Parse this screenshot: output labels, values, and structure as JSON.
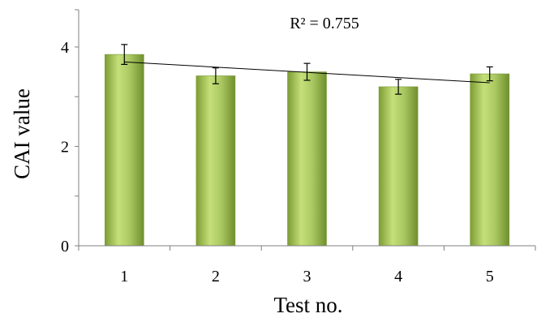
{
  "chart_data": {
    "type": "bar",
    "categories": [
      "1",
      "2",
      "3",
      "4",
      "5"
    ],
    "values": [
      3.85,
      3.42,
      3.5,
      3.2,
      3.46
    ],
    "error": [
      0.2,
      0.16,
      0.17,
      0.15,
      0.14
    ],
    "ylim": [
      0,
      4.75
    ],
    "yticks": [
      "0",
      "2",
      "4"
    ],
    "ytick_values": [
      0,
      2,
      4
    ],
    "xlabel": "Test no.",
    "ylabel": "CAI value",
    "annotation": "R² = 0.755",
    "trendline": {
      "type": "linear",
      "start": 3.7,
      "end": 3.28
    },
    "grid": false,
    "legend": "none",
    "colors": {
      "bar_light": "#c5e07a",
      "bar_mid": "#9bbb59",
      "bar_dark": "#6f8f2e",
      "axis": "#808080",
      "line": "#000000"
    }
  }
}
